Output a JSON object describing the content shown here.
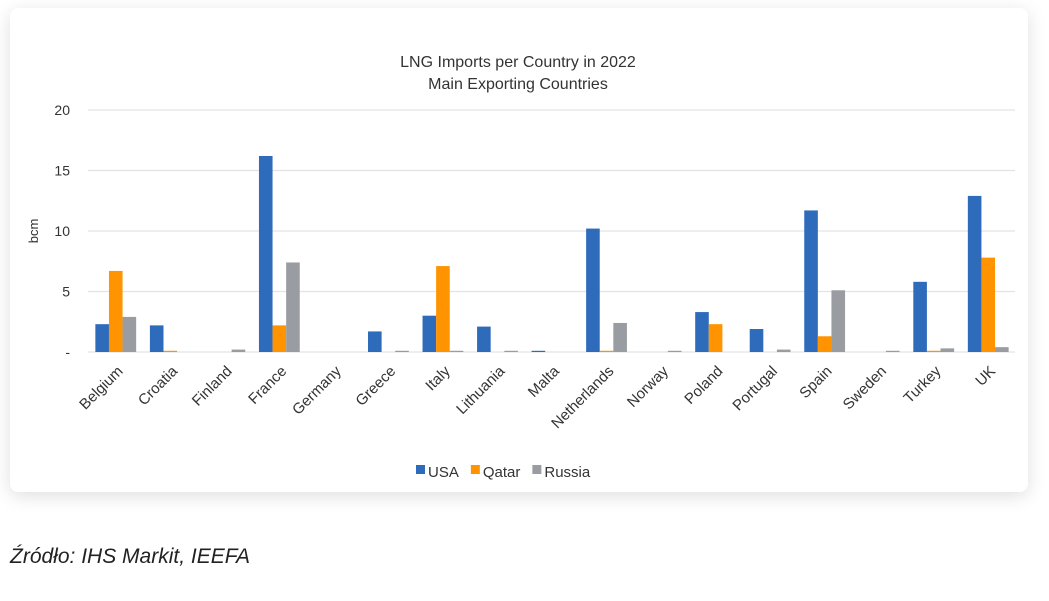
{
  "chart_data": {
    "type": "bar",
    "title": "LNG Imports per Country in 2022",
    "subtitle": "Main Exporting Countries",
    "xlabel": "",
    "ylabel": "bcm",
    "ylim": [
      0,
      20
    ],
    "yticks": [
      0,
      5,
      10,
      15,
      20
    ],
    "ytick_labels": [
      "-",
      "5",
      "10",
      "15",
      "20"
    ],
    "grid": true,
    "legend": "bottom",
    "categories": [
      "Belgium",
      "Croatia",
      "Finland",
      "France",
      "Germany",
      "Greece",
      "Italy",
      "Lithuania",
      "Malta",
      "Netherlands",
      "Norway",
      "Poland",
      "Portugal",
      "Spain",
      "Sweden",
      "Turkey",
      "UK"
    ],
    "series": [
      {
        "name": "USA",
        "color": "#2f6bbb",
        "values": [
          2.3,
          2.2,
          0,
          16.2,
          0,
          1.7,
          3.0,
          2.1,
          0.1,
          10.2,
          0,
          3.3,
          1.9,
          11.7,
          0,
          5.8,
          12.9
        ]
      },
      {
        "name": "Qatar",
        "color": "#ff9300",
        "values": [
          6.7,
          0.1,
          0,
          2.2,
          0,
          0,
          7.1,
          0,
          0,
          0.1,
          0,
          2.3,
          0,
          1.3,
          0,
          0.1,
          7.8
        ]
      },
      {
        "name": "Russia",
        "color": "#999da1",
        "values": [
          2.9,
          0,
          0.2,
          7.4,
          0,
          0.1,
          0.1,
          0.1,
          0,
          2.4,
          0.1,
          0,
          0.2,
          5.1,
          0.1,
          0.3,
          0.4
        ]
      }
    ]
  },
  "caption": "Źródło: IHS Markit, IEEFA"
}
